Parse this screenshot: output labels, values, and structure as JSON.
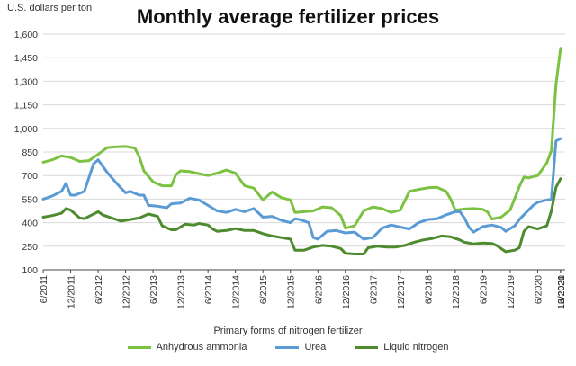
{
  "chart_data": {
    "type": "line",
    "title": "Monthly average fertilizer prices",
    "ylabel": "U.S. dollars per ton",
    "xlabel": "Primary forms of nitrogen fertilizer",
    "ylim": [
      100,
      1600
    ],
    "yticks": [
      "1,600",
      "1,450",
      "1,300",
      "1,150",
      "1,000",
      "850",
      "700",
      "550",
      "400",
      "250",
      "100"
    ],
    "ytick_values": [
      1600,
      1450,
      1300,
      1150,
      1000,
      850,
      700,
      550,
      400,
      250,
      100
    ],
    "xtick_labels": [
      "6/2011",
      "12/2011",
      "6/2012",
      "12/2012",
      "6/2013",
      "12/2013",
      "6/2014",
      "12/2014",
      "6/2015",
      "12/2015",
      "6/2016",
      "12/2016",
      "6/2017",
      "12/2017",
      "6/2018",
      "12/2018",
      "6/2019",
      "12/2019",
      "6/2020",
      "12/2020",
      "6/2021",
      "12/2021"
    ],
    "x_start": "6/2011",
    "x_end": "12/2021",
    "series": [
      {
        "name": "Anhydrous ammonia",
        "color": "#7cc242",
        "points": [
          [
            0,
            785
          ],
          [
            2,
            800
          ],
          [
            4,
            825
          ],
          [
            6,
            815
          ],
          [
            8,
            790
          ],
          [
            10,
            795
          ],
          [
            12,
            835
          ],
          [
            14,
            878
          ],
          [
            16,
            883
          ],
          [
            18,
            885
          ],
          [
            20,
            875
          ],
          [
            21,
            820
          ],
          [
            22,
            730
          ],
          [
            24,
            660
          ],
          [
            26,
            635
          ],
          [
            28,
            635
          ],
          [
            29,
            705
          ],
          [
            30,
            730
          ],
          [
            32,
            725
          ],
          [
            34,
            712
          ],
          [
            36,
            700
          ],
          [
            38,
            715
          ],
          [
            40,
            735
          ],
          [
            42,
            715
          ],
          [
            44,
            635
          ],
          [
            46,
            620
          ],
          [
            48,
            545
          ],
          [
            50,
            595
          ],
          [
            52,
            560
          ],
          [
            54,
            545
          ],
          [
            55,
            465
          ],
          [
            57,
            470
          ],
          [
            59,
            475
          ],
          [
            61,
            500
          ],
          [
            63,
            495
          ],
          [
            65,
            445
          ],
          [
            66,
            365
          ],
          [
            68,
            380
          ],
          [
            70,
            475
          ],
          [
            72,
            500
          ],
          [
            74,
            490
          ],
          [
            76,
            465
          ],
          [
            78,
            480
          ],
          [
            80,
            600
          ],
          [
            82,
            612
          ],
          [
            84,
            622
          ],
          [
            86,
            625
          ],
          [
            88,
            600
          ],
          [
            89,
            550
          ],
          [
            90,
            480
          ],
          [
            92,
            487
          ],
          [
            94,
            490
          ],
          [
            96,
            485
          ],
          [
            97,
            470
          ],
          [
            98,
            423
          ],
          [
            100,
            435
          ],
          [
            102,
            480
          ],
          [
            104,
            630
          ],
          [
            105,
            690
          ],
          [
            106,
            685
          ],
          [
            108,
            700
          ],
          [
            110,
            780
          ],
          [
            111,
            860
          ],
          [
            112,
            1280
          ],
          [
            113,
            1510
          ]
        ]
      },
      {
        "name": "Urea",
        "color": "#5b9bd5",
        "points": [
          [
            0,
            550
          ],
          [
            2,
            570
          ],
          [
            4,
            600
          ],
          [
            5,
            650
          ],
          [
            6,
            575
          ],
          [
            7,
            575
          ],
          [
            9,
            600
          ],
          [
            11,
            775
          ],
          [
            12,
            800
          ],
          [
            13,
            760
          ],
          [
            14,
            720
          ],
          [
            15,
            685
          ],
          [
            17,
            620
          ],
          [
            18,
            590
          ],
          [
            19,
            600
          ],
          [
            21,
            575
          ],
          [
            22,
            575
          ],
          [
            23,
            510
          ],
          [
            25,
            505
          ],
          [
            27,
            495
          ],
          [
            28,
            520
          ],
          [
            30,
            525
          ],
          [
            32,
            555
          ],
          [
            34,
            545
          ],
          [
            36,
            510
          ],
          [
            38,
            475
          ],
          [
            40,
            465
          ],
          [
            42,
            485
          ],
          [
            44,
            470
          ],
          [
            46,
            490
          ],
          [
            48,
            435
          ],
          [
            50,
            440
          ],
          [
            52,
            415
          ],
          [
            54,
            400
          ],
          [
            55,
            425
          ],
          [
            56,
            420
          ],
          [
            58,
            400
          ],
          [
            59,
            305
          ],
          [
            60,
            295
          ],
          [
            62,
            345
          ],
          [
            64,
            350
          ],
          [
            66,
            335
          ],
          [
            68,
            340
          ],
          [
            70,
            295
          ],
          [
            72,
            305
          ],
          [
            73,
            335
          ],
          [
            74,
            365
          ],
          [
            76,
            385
          ],
          [
            78,
            372
          ],
          [
            80,
            360
          ],
          [
            82,
            400
          ],
          [
            84,
            420
          ],
          [
            86,
            425
          ],
          [
            88,
            450
          ],
          [
            90,
            470
          ],
          [
            91,
            470
          ],
          [
            92,
            430
          ],
          [
            93,
            370
          ],
          [
            94,
            340
          ],
          [
            96,
            375
          ],
          [
            98,
            385
          ],
          [
            100,
            370
          ],
          [
            101,
            345
          ],
          [
            103,
            380
          ],
          [
            104,
            420
          ],
          [
            106,
            480
          ],
          [
            107,
            510
          ],
          [
            108,
            530
          ],
          [
            110,
            545
          ],
          [
            111,
            550
          ],
          [
            112,
            920
          ],
          [
            113,
            935
          ]
        ]
      },
      {
        "name": "Liquid nitrogen",
        "color": "#4e8b2f",
        "points": [
          [
            0,
            435
          ],
          [
            2,
            445
          ],
          [
            4,
            460
          ],
          [
            5,
            490
          ],
          [
            6,
            480
          ],
          [
            8,
            430
          ],
          [
            9,
            425
          ],
          [
            10,
            440
          ],
          [
            12,
            470
          ],
          [
            13,
            450
          ],
          [
            15,
            430
          ],
          [
            17,
            410
          ],
          [
            19,
            420
          ],
          [
            21,
            430
          ],
          [
            23,
            455
          ],
          [
            25,
            440
          ],
          [
            26,
            380
          ],
          [
            28,
            355
          ],
          [
            29,
            355
          ],
          [
            31,
            390
          ],
          [
            33,
            385
          ],
          [
            34,
            395
          ],
          [
            36,
            385
          ],
          [
            37,
            360
          ],
          [
            38,
            345
          ],
          [
            40,
            350
          ],
          [
            42,
            362
          ],
          [
            44,
            350
          ],
          [
            46,
            350
          ],
          [
            48,
            330
          ],
          [
            50,
            315
          ],
          [
            52,
            305
          ],
          [
            54,
            295
          ],
          [
            55,
            225
          ],
          [
            57,
            225
          ],
          [
            59,
            245
          ],
          [
            61,
            255
          ],
          [
            63,
            250
          ],
          [
            65,
            235
          ],
          [
            66,
            205
          ],
          [
            68,
            200
          ],
          [
            70,
            200
          ],
          [
            71,
            240
          ],
          [
            73,
            250
          ],
          [
            75,
            245
          ],
          [
            77,
            245
          ],
          [
            79,
            255
          ],
          [
            81,
            275
          ],
          [
            83,
            290
          ],
          [
            85,
            300
          ],
          [
            87,
            315
          ],
          [
            89,
            310
          ],
          [
            91,
            290
          ],
          [
            92,
            275
          ],
          [
            94,
            265
          ],
          [
            96,
            270
          ],
          [
            98,
            268
          ],
          [
            99,
            255
          ],
          [
            101,
            215
          ],
          [
            103,
            225
          ],
          [
            104,
            240
          ],
          [
            105,
            345
          ],
          [
            106,
            375
          ],
          [
            108,
            360
          ],
          [
            110,
            380
          ],
          [
            111,
            475
          ],
          [
            112,
            625
          ],
          [
            113,
            680
          ]
        ]
      }
    ],
    "legend_position": "bottom"
  }
}
